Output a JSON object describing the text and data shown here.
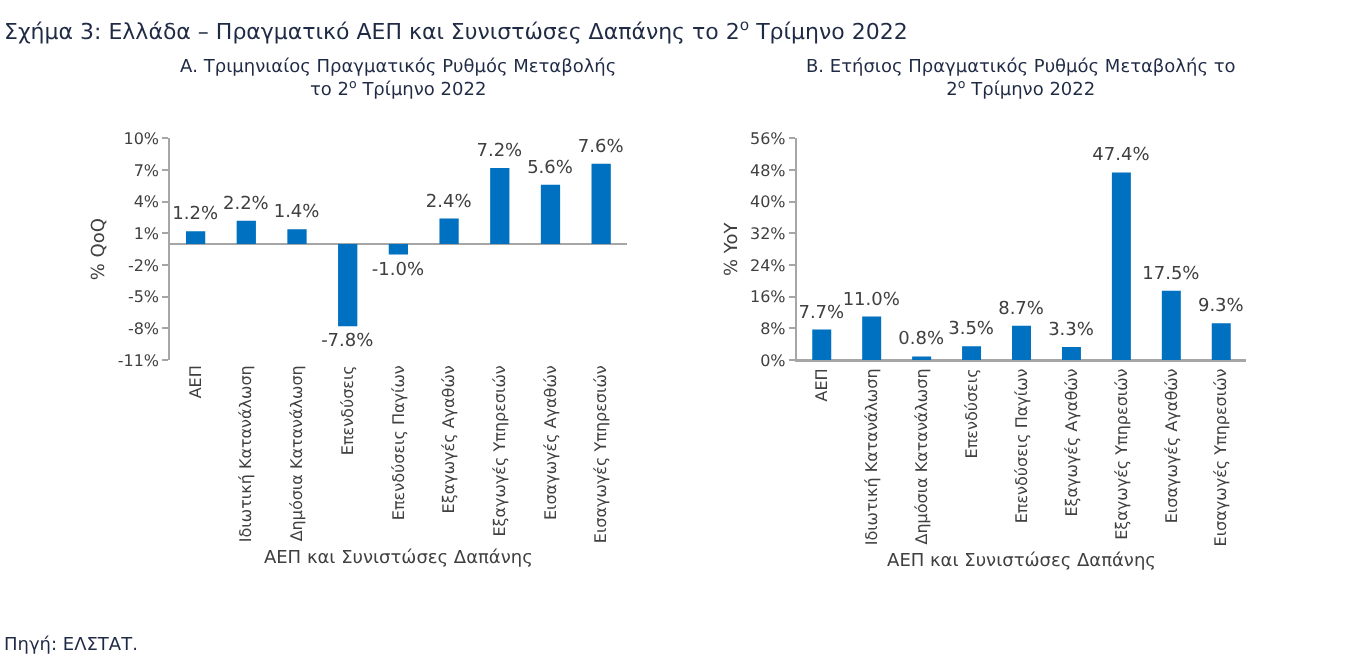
{
  "chart_data": [
    {
      "type": "bar",
      "title": "Α. Τριμηνιαίος Πραγματικός Ρυθμός Μεταβολής το 2$^{ο}$ Τρίμηνο 2022",
      "xlabel": "ΑΕΠ και Συνιστώσες Δαπάνης",
      "ylabel": "% QoQ",
      "categories": [
        "ΑΕΠ",
        "Ιδιωτική Κατανάλωση",
        "Δημόσια Κατανάλωση",
        "Επενδύσεις",
        "Επενδύσεις Παγίων",
        "Εξαγωγές Αγαθών",
        "Εξαγωγές Υπηρεσιών",
        "Εισαγωγές Αγαθών",
        "Εισαγωγές Υπηρεσιών"
      ],
      "values": [
        1.2,
        2.2,
        1.4,
        -7.8,
        -1.0,
        2.4,
        7.2,
        5.6,
        7.6
      ],
      "value_labels": [
        "1.2%",
        "2.2%",
        "1.4%",
        "-7.8%",
        "-1.0%",
        "2.4%",
        "7.2%",
        "5.6%",
        "7.6%"
      ],
      "color": "#0070c0",
      "ylim": [
        -11,
        10
      ],
      "yticks": [
        {
          "value": -11,
          "label": "-11%"
        },
        {
          "value": -8,
          "label": "-8%"
        },
        {
          "value": -5,
          "label": "-5%"
        },
        {
          "value": -2,
          "label": "-2%"
        },
        {
          "value": 1,
          "label": "1%"
        },
        {
          "value": 4,
          "label": "4%"
        },
        {
          "value": 7,
          "label": "7%"
        },
        {
          "value": 10,
          "label": "10%"
        }
      ],
      "annotations": [
        "Σχήμα 3: Ελλάδα – Πραγματικό ΑΕΠ και Συνιστώσες Δαπάνης το 2$^{ο}$ Τρίμηνο 2022",
        "Πηγή: ΕΛΣΤΑΤ."
      ]
    },
    {
      "type": "bar",
      "title": "Β. Ετήσιος Πραγματικός Ρυθμός Μεταβολής το 2$^{ο}$ Τρίμηνο 2022",
      "xlabel": "ΑΕΠ και Συνιστώσες Δαπάνης",
      "ylabel": "% YoY",
      "categories": [
        "ΑΕΠ",
        "Ιδιωτική Κατανάλωση",
        "Δημόσια Κατανάλωση",
        "Επενδύσεις",
        "Επενδύσεις Παγίων",
        "Εξαγωγές Αγαθών",
        "Εξαγωγές Υπηρεσιών",
        "Εισαγωγές Αγαθών",
        "Εισαγωγές Υπηρεσιών"
      ],
      "values": [
        7.7,
        11.0,
        0.8,
        3.5,
        8.7,
        3.3,
        47.4,
        17.5,
        9.3
      ],
      "value_labels": [
        "7.7%",
        "11.0%",
        "0.8%",
        "3.5%",
        "8.7%",
        "3.3%",
        "47.4%",
        "17.5%",
        "9.3%"
      ],
      "color": "#0070c0",
      "ylim": [
        0,
        56
      ],
      "yticks": [
        {
          "value": 0,
          "label": "0%"
        },
        {
          "value": 8,
          "label": "8%"
        },
        {
          "value": 16,
          "label": "16%"
        },
        {
          "value": 24,
          "label": "24%"
        },
        {
          "value": 32,
          "label": "32%"
        },
        {
          "value": 40,
          "label": "40%"
        },
        {
          "value": 48,
          "label": "48%"
        },
        {
          "value": 56,
          "label": "56%"
        }
      ]
    }
  ]
}
